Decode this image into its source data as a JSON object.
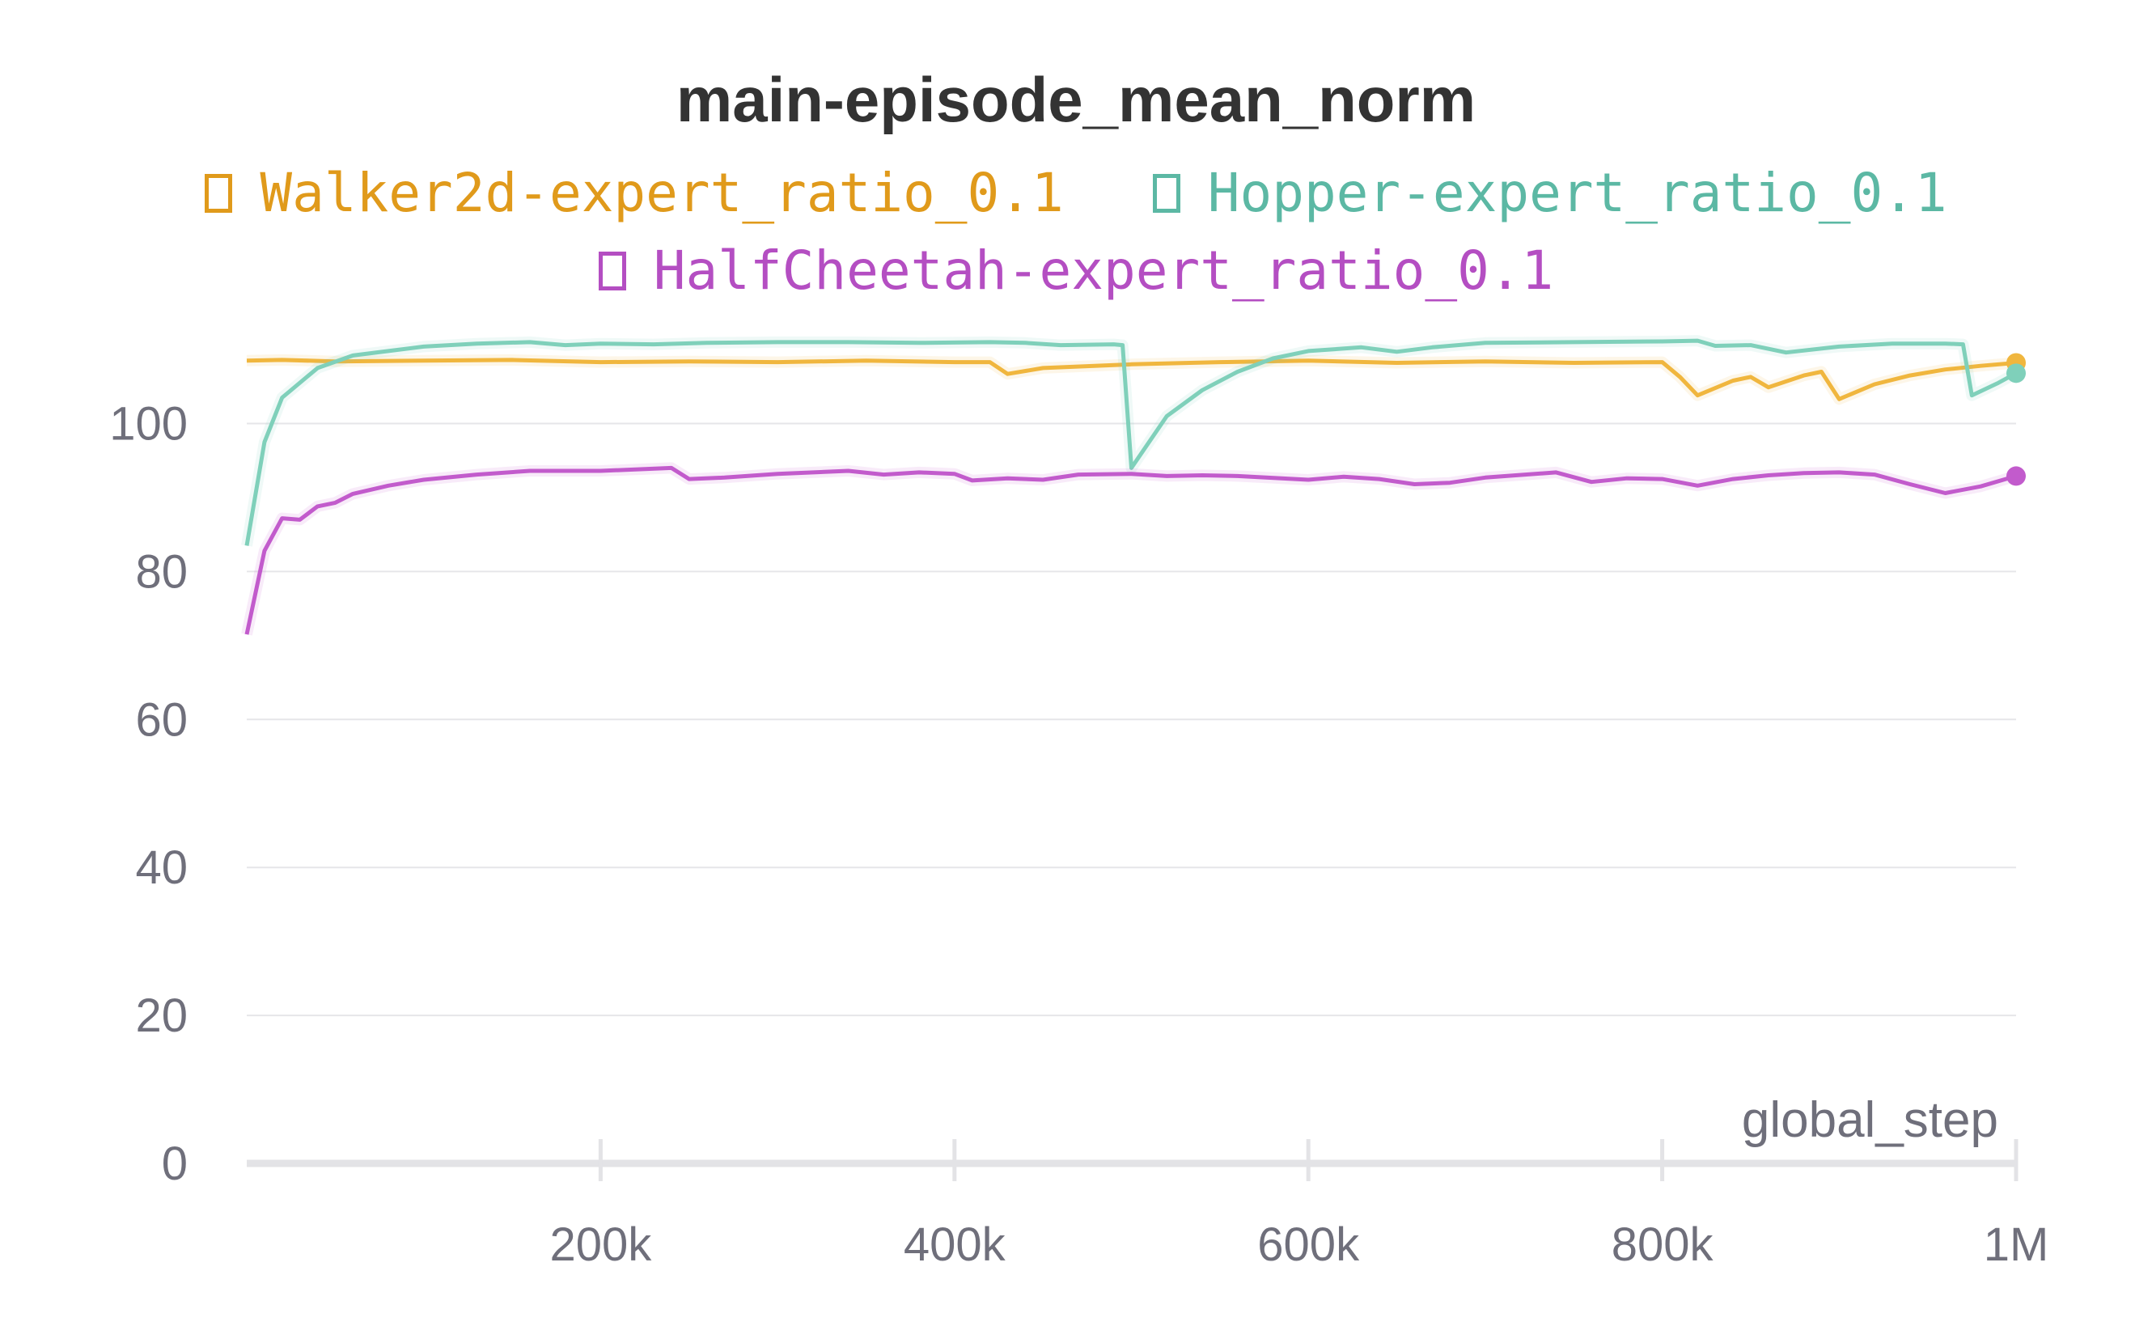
{
  "chart_data": {
    "type": "line",
    "title": "main-episode_mean_norm",
    "xlabel": "global_step",
    "ylabel": "",
    "xlim": [
      0,
      1000000
    ],
    "ylim": [
      0,
      110
    ],
    "x_ticks": [
      {
        "value": 200000,
        "label": "200k"
      },
      {
        "value": 400000,
        "label": "400k"
      },
      {
        "value": 600000,
        "label": "600k"
      },
      {
        "value": 800000,
        "label": "800k"
      },
      {
        "value": 1000000,
        "label": "1M"
      }
    ],
    "y_ticks": [
      {
        "value": 0,
        "label": "0"
      },
      {
        "value": 20,
        "label": "20"
      },
      {
        "value": 40,
        "label": "40"
      },
      {
        "value": 60,
        "label": "60"
      },
      {
        "value": 80,
        "label": "80"
      },
      {
        "value": 100,
        "label": "100"
      }
    ],
    "grid": true,
    "legend_position": "top",
    "series": [
      {
        "name": "Walker2d-expert_ratio_0.1",
        "color": "#f0b63e",
        "legend_color": "#e09a1b",
        "x": [
          0,
          20000,
          50000,
          100000,
          150000,
          200000,
          250000,
          300000,
          350000,
          400000,
          420000,
          430000,
          450000,
          500000,
          550000,
          600000,
          650000,
          700000,
          750000,
          800000,
          810000,
          820000,
          840000,
          850000,
          860000,
          880000,
          890000,
          900000,
          920000,
          940000,
          960000,
          980000,
          1000000
        ],
        "values": [
          108.5,
          108.6,
          108.4,
          108.5,
          108.6,
          108.3,
          108.4,
          108.3,
          108.5,
          108.3,
          108.3,
          106.7,
          107.5,
          108.0,
          108.3,
          108.5,
          108.2,
          108.4,
          108.2,
          108.3,
          106.3,
          103.8,
          105.8,
          106.3,
          104.9,
          106.5,
          107.0,
          103.3,
          105.3,
          106.5,
          107.3,
          107.8,
          108.2
        ]
      },
      {
        "name": "Hopper-expert_ratio_0.1",
        "color": "#7fd0ba",
        "legend_color": "#5cb8a4",
        "x": [
          0,
          10000,
          20000,
          40000,
          60000,
          80000,
          100000,
          130000,
          160000,
          180000,
          200000,
          230000,
          260000,
          300000,
          340000,
          380000,
          420000,
          440000,
          460000,
          490000,
          495000,
          500000,
          520000,
          540000,
          560000,
          580000,
          600000,
          630000,
          650000,
          670000,
          700000,
          750000,
          800000,
          820000,
          830000,
          850000,
          870000,
          900000,
          930000,
          960000,
          970000,
          975000,
          990000,
          1000000
        ],
        "values": [
          83.5,
          97.5,
          103.5,
          107.5,
          109.2,
          109.8,
          110.4,
          110.8,
          111.0,
          110.6,
          110.8,
          110.7,
          110.9,
          111.0,
          111.0,
          110.9,
          111.0,
          110.9,
          110.6,
          110.7,
          110.6,
          94.0,
          101.0,
          104.5,
          107.0,
          108.8,
          109.8,
          110.3,
          109.7,
          110.3,
          110.9,
          111.0,
          111.1,
          111.2,
          110.5,
          110.6,
          109.6,
          110.4,
          110.8,
          110.8,
          110.7,
          103.8,
          105.5,
          106.8
        ]
      },
      {
        "name": "HalfCheetah-expert_ratio_0.1",
        "color": "#c25bcc",
        "legend_color": "#b44ec2",
        "x": [
          0,
          10000,
          20000,
          30000,
          40000,
          50000,
          60000,
          80000,
          100000,
          130000,
          160000,
          200000,
          240000,
          250000,
          270000,
          300000,
          340000,
          360000,
          380000,
          400000,
          410000,
          430000,
          450000,
          470000,
          500000,
          520000,
          540000,
          560000,
          600000,
          620000,
          640000,
          660000,
          680000,
          700000,
          740000,
          760000,
          780000,
          800000,
          820000,
          840000,
          860000,
          880000,
          900000,
          920000,
          940000,
          960000,
          980000,
          1000000
        ],
        "values": [
          71.5,
          82.8,
          87.2,
          87.0,
          88.8,
          89.3,
          90.5,
          91.6,
          92.4,
          93.1,
          93.6,
          93.6,
          94.0,
          92.5,
          92.7,
          93.2,
          93.6,
          93.1,
          93.4,
          93.2,
          92.3,
          92.6,
          92.4,
          93.1,
          93.2,
          92.9,
          93.0,
          92.9,
          92.4,
          92.8,
          92.5,
          91.8,
          92.0,
          92.7,
          93.4,
          92.1,
          92.6,
          92.5,
          91.6,
          92.5,
          93.0,
          93.3,
          93.4,
          93.1,
          91.8,
          90.6,
          91.5,
          92.9
        ]
      }
    ]
  }
}
